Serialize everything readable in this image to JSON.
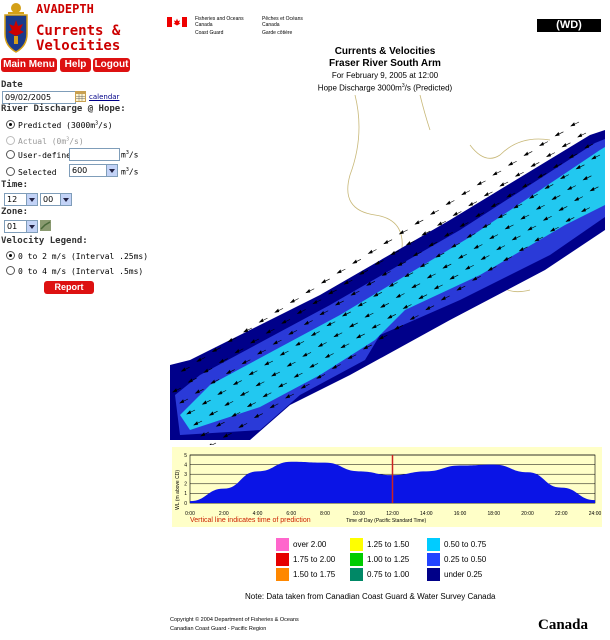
{
  "app": {
    "brand_top": "AVADEPTH",
    "brand_line1": "Currents &",
    "brand_line2": "Velocities"
  },
  "nav": {
    "main_menu": "Main Menu",
    "help": "Help",
    "logout": "Logout"
  },
  "form": {
    "date_label": "Date",
    "date_value": "09/02/2005",
    "calendar_link": "calendar",
    "discharge_label": "River Discharge @ Hope:",
    "opt_predicted": "Predicted (3000m",
    "opt_predicted_sup": "3",
    "opt_predicted_tail": "/s)",
    "opt_actual": "Actual (0m",
    "opt_actual_sup": "3",
    "opt_actual_tail": "/s)",
    "opt_user": "User-defined",
    "opt_selected": "Selected",
    "unit": "m",
    "unit_sup": "3",
    "unit_tail": "/s",
    "selected_value": "600",
    "time_label": "Time:",
    "hour": "12",
    "minute": "00",
    "zone_label": "Zone:",
    "zone": "01",
    "legend_label": "Velocity Legend:",
    "legend_opt1": "0 to 2 m/s (Interval .25ms)",
    "legend_opt2": "0 to 4 m/s (Interval .5ms)",
    "report_button": "Report"
  },
  "header": {
    "gov_en1": "Fisheries and Oceans",
    "gov_en2": "Canada",
    "gov_en3": "Coast Guard",
    "gov_fr1": "Pêches et Océans",
    "gov_fr2": "Canada",
    "gov_fr3": "Garde côtière",
    "wd_badge": "(WD)"
  },
  "titles": {
    "line1": "Currents & Velocities",
    "line2": "Fraser River South Arm",
    "line3": "For February 9, 2005 at 12:00",
    "line4_pre": "Hope Discharge 3000m",
    "line4_sup": "3",
    "line4_post": "/s (Predicted)"
  },
  "tide": {
    "ylabel": "WL (m above CD)",
    "yticks": [
      "0",
      "1",
      "2",
      "3",
      "4",
      "5"
    ],
    "xticks": [
      "0:00",
      "2:00",
      "4:00",
      "6:00",
      "8:00",
      "10:00",
      "12:00",
      "14:00",
      "16:00",
      "18:00",
      "20:00",
      "22:00",
      "24:00"
    ],
    "note": "Vertical line indicates time of prediction",
    "xlabel": "Time of Day (Pacific Standard Time)"
  },
  "legend": [
    {
      "label": "over 2.00",
      "color": "#ff66cc"
    },
    {
      "label": "1.75 to 2.00",
      "color": "#e60000"
    },
    {
      "label": "1.50 to 1.75",
      "color": "#ff8800"
    },
    {
      "label": "1.25 to 1.50",
      "color": "#ffff00"
    },
    {
      "label": "1.00 to 1.25",
      "color": "#00cc00"
    },
    {
      "label": "0.75 to 1.00",
      "color": "#008866"
    },
    {
      "label": "0.50 to 0.75",
      "color": "#00ccff"
    },
    {
      "label": "0.25 to 0.50",
      "color": "#2244ff"
    },
    {
      "label": "under 0.25",
      "color": "#000088"
    }
  ],
  "footer": {
    "note": "Note: Data taken from Canadian Coast Guard & Water Survey Canada",
    "copyright1": "Copyright © 2004 Department of Fisheries & Oceans",
    "copyright2": "Canadian Coast Guard - Pacific Region",
    "wordmark": "Canada"
  },
  "chart_data": {
    "type": "area",
    "x": [
      0,
      2,
      4,
      6,
      8,
      10,
      12,
      14,
      16,
      18,
      20,
      22,
      24
    ],
    "series": [
      {
        "values": [
          0.2,
          1.5,
          3.3,
          4.3,
          4.2,
          3.3,
          2.9,
          3.3,
          3.9,
          4.0,
          3.2,
          1.6,
          0.3
        ]
      }
    ],
    "xlabel": "Time of Day (Pacific Standard Time)",
    "ylabel": "WL (m above CD)",
    "xlim": [
      0,
      24
    ],
    "ylim": [
      0,
      5
    ],
    "prediction_time": 12,
    "grid": true
  }
}
